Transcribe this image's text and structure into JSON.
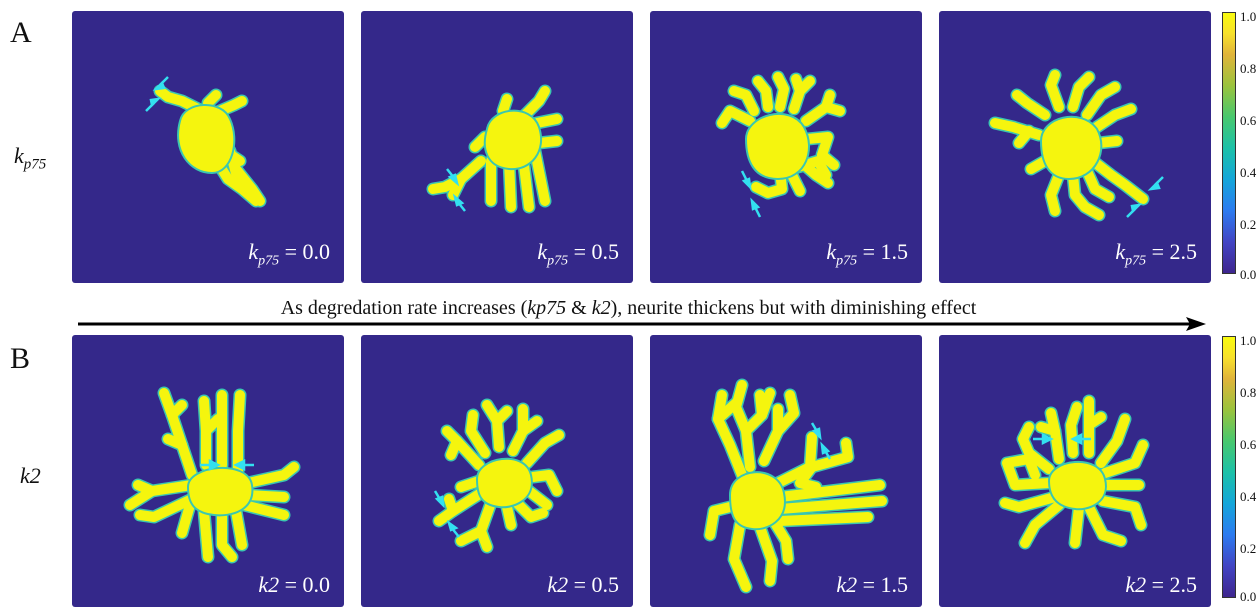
{
  "figure": {
    "section_a": {
      "letter": "A",
      "row_label_base": "k",
      "row_label_sub": "p75"
    },
    "section_b": {
      "letter": "B",
      "row_label": "k2"
    },
    "panels_a": [
      {
        "var": "k",
        "sub": "p75",
        "eq": " = 0.0"
      },
      {
        "var": "k",
        "sub": "p75",
        "eq": " = 0.5"
      },
      {
        "var": "k",
        "sub": "p75",
        "eq": " = 1.5"
      },
      {
        "var": "k",
        "sub": "p75",
        "eq": " = 2.5"
      }
    ],
    "panels_b": [
      {
        "var": "k2",
        "eq": " = 0.0"
      },
      {
        "var": "k2",
        "eq": " = 0.5"
      },
      {
        "var": "k2",
        "eq": " = 1.5"
      },
      {
        "var": "k2",
        "eq": " = 2.5"
      }
    ],
    "caption": {
      "pre": "As degredation rate increases (",
      "term1": "kp75",
      "mid": " & ",
      "term2": "k2",
      "post": "), neurite thickens but with diminishing effect"
    },
    "colorbar": {
      "ticks": [
        "1.0",
        "0.8",
        "0.6",
        "0.4",
        "0.2",
        "0.0"
      ],
      "low_color": "#3e268e",
      "high_color": "#f9fb0e"
    },
    "colors": {
      "background": "#34288a",
      "cell": "#f5f50e",
      "cell_edge": "#3bc7b0",
      "annotation_arrow": "#33e0f0"
    }
  }
}
